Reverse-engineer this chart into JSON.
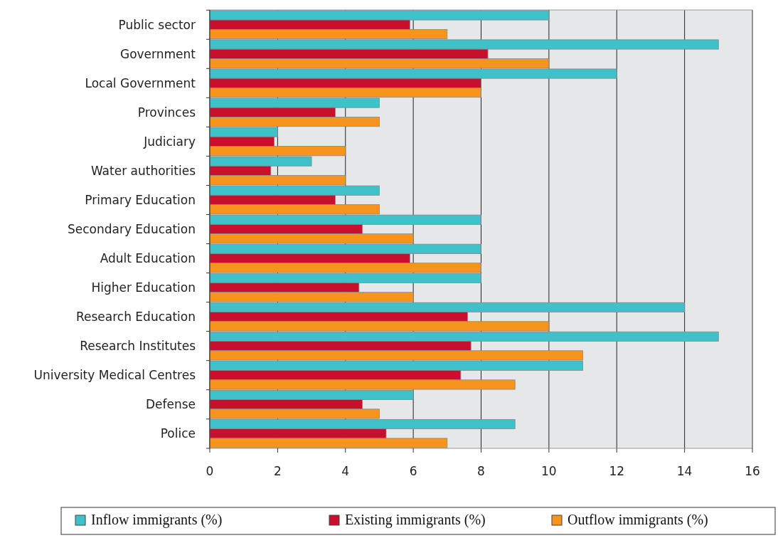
{
  "chart_data": {
    "type": "bar",
    "orientation": "horizontal",
    "categories": [
      "Public sector",
      "Government",
      "Local Government",
      "Provinces",
      "Judiciary",
      "Water authorities",
      "Primary Education",
      "Secondary Education",
      "Adult Education",
      "Higher Education",
      "Research Education",
      "Research Institutes",
      "University Medical Centres",
      "Defense",
      "Police"
    ],
    "series": [
      {
        "name": "Inflow immigrants (%)",
        "color": "#3fc1c9",
        "values": [
          10,
          15,
          12,
          5,
          2,
          3,
          5,
          8,
          8,
          8,
          14,
          15,
          11,
          6,
          9
        ]
      },
      {
        "name": "Existing immigrants (%)",
        "color": "#c8102e",
        "values": [
          5.9,
          8.2,
          8,
          3.7,
          1.9,
          1.8,
          3.7,
          4.5,
          5.9,
          4.4,
          7.6,
          7.7,
          7.4,
          4.5,
          5.2
        ]
      },
      {
        "name": "Outflow immigrants (%)",
        "color": "#f7941d",
        "values": [
          7,
          10,
          8,
          5,
          4,
          4,
          5,
          6,
          8,
          6,
          10,
          11,
          9,
          5,
          7
        ]
      }
    ],
    "xlim": [
      0,
      16
    ],
    "xticks": [
      0,
      2,
      4,
      6,
      8,
      10,
      12,
      14,
      16
    ],
    "grid": "x",
    "legend": "bottom"
  }
}
